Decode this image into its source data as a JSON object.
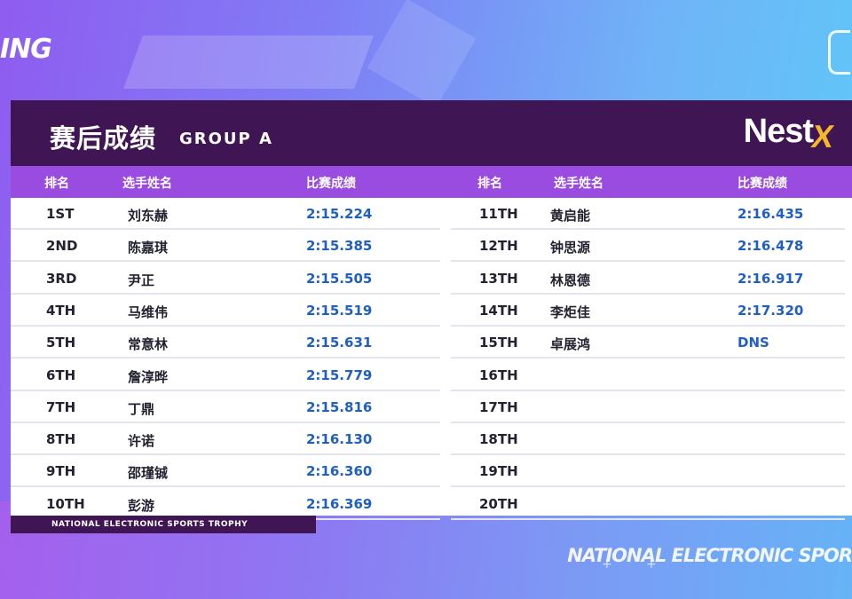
{
  "corner_left_text": "ING",
  "title": {
    "main": "赛后成绩",
    "group": "GROUP A"
  },
  "logo": {
    "text": "Nest",
    "accent": "X"
  },
  "headers": {
    "rank": "排名",
    "name": "选手姓名",
    "score": "比赛成绩"
  },
  "left_rows": [
    {
      "rank": "1ST",
      "name": "刘东赫",
      "score": "2:15.224"
    },
    {
      "rank": "2ND",
      "name": "陈嘉琪",
      "score": "2:15.385"
    },
    {
      "rank": "3RD",
      "name": "尹正",
      "score": "2:15.505"
    },
    {
      "rank": "4TH",
      "name": "马维伟",
      "score": "2:15.519"
    },
    {
      "rank": "5TH",
      "name": "常意林",
      "score": "2:15.631"
    },
    {
      "rank": "6TH",
      "name": "詹淳晔",
      "score": "2:15.779"
    },
    {
      "rank": "7TH",
      "name": "丁鼎",
      "score": "2:15.816"
    },
    {
      "rank": "8TH",
      "name": "许诺",
      "score": "2:16.130"
    },
    {
      "rank": "9TH",
      "name": "邵瑾铖",
      "score": "2:16.360"
    },
    {
      "rank": "10TH",
      "name": "彭游",
      "score": "2:16.369"
    }
  ],
  "right_rows": [
    {
      "rank": "11TH",
      "name": "黄启能",
      "score": "2:16.435"
    },
    {
      "rank": "12TH",
      "name": "钟思源",
      "score": "2:16.478"
    },
    {
      "rank": "13TH",
      "name": "林恩德",
      "score": "2:16.917"
    },
    {
      "rank": "14TH",
      "name": "李炬佳",
      "score": "2:17.320"
    },
    {
      "rank": "15TH",
      "name": "卓展鸿",
      "score": "DNS"
    },
    {
      "rank": "16TH",
      "name": "",
      "score": ""
    },
    {
      "rank": "17TH",
      "name": "",
      "score": ""
    },
    {
      "rank": "18TH",
      "name": "",
      "score": ""
    },
    {
      "rank": "19TH",
      "name": "",
      "score": ""
    },
    {
      "rank": "20TH",
      "name": "",
      "score": ""
    }
  ],
  "footer_tag": "NATIONAL ELECTRONIC SPORTS TROPHY",
  "footer_right": "NATIONAL ELECTRONIC SPOR",
  "colors": {
    "title_bar": "#3f1553",
    "header_bar": "#9a4be0",
    "score_text": "#1f5fc4",
    "logo_accent": "#f5b62a"
  }
}
